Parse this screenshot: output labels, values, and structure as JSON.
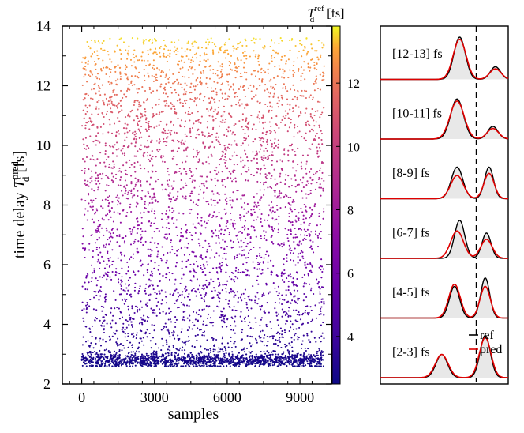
{
  "chart_data": [
    {
      "type": "scatter",
      "xlabel": "samples",
      "ylabel_main": "time delay ",
      "ylabel_symbol": "T",
      "ylabel_sub": "d",
      "ylabel_sup": "pred",
      "ylabel_unit": " [fs]",
      "xlim": [
        -800,
        10300
      ],
      "ylim": [
        2,
        14
      ],
      "xticks": [
        0,
        3000,
        6000,
        9000
      ],
      "xtick_labels": [
        "0",
        "3000",
        "6000",
        "9000"
      ],
      "yticks": [
        2,
        4,
        6,
        8,
        10,
        12,
        14
      ],
      "ytick_labels": [
        "2",
        "4",
        "6",
        "8",
        "10",
        "12",
        "14"
      ],
      "n_samples": 10000,
      "value_range": [
        2.6,
        13.6
      ],
      "dense_band_center": 2.8,
      "colormap": "plasma"
    },
    {
      "type": "colorbar",
      "label_symbol": "T",
      "label_sub": "d",
      "label_sup": "ref",
      "label_unit": " [fs]",
      "range": [
        2.5,
        13.8
      ],
      "ticks": [
        4,
        6,
        8,
        10,
        12
      ],
      "tick_labels": [
        "4",
        "6",
        "8",
        "10",
        "12"
      ],
      "colormap": "plasma"
    },
    {
      "type": "line",
      "panels": [
        {
          "label": "[12-13] fs",
          "ref_peaks": [
            [
              0.62,
              1.0,
              0.045
            ],
            [
              0.9,
              0.3,
              0.04
            ]
          ],
          "pred_peaks": [
            [
              0.62,
              0.95,
              0.05
            ],
            [
              0.9,
              0.25,
              0.045
            ]
          ]
        },
        {
          "label": "[10-11] fs",
          "ref_peaks": [
            [
              0.6,
              0.95,
              0.05
            ],
            [
              0.88,
              0.3,
              0.04
            ]
          ],
          "pred_peaks": [
            [
              0.6,
              0.9,
              0.055
            ],
            [
              0.88,
              0.25,
              0.045
            ]
          ]
        },
        {
          "label": "[8-9] fs",
          "ref_peaks": [
            [
              0.6,
              0.75,
              0.045
            ],
            [
              0.85,
              0.75,
              0.035
            ]
          ],
          "pred_peaks": [
            [
              0.6,
              0.55,
              0.05
            ],
            [
              0.85,
              0.6,
              0.04
            ]
          ]
        },
        {
          "label": "[6-7] fs",
          "ref_peaks": [
            [
              0.62,
              0.9,
              0.04
            ],
            [
              0.83,
              0.6,
              0.035
            ]
          ],
          "pred_peaks": [
            [
              0.6,
              0.65,
              0.05
            ],
            [
              0.83,
              0.45,
              0.045
            ]
          ]
        },
        {
          "label": "[4-5] fs",
          "ref_peaks": [
            [
              0.58,
              0.75,
              0.04
            ],
            [
              0.82,
              0.95,
              0.035
            ]
          ],
          "pred_peaks": [
            [
              0.58,
              0.8,
              0.045
            ],
            [
              0.82,
              0.75,
              0.04
            ]
          ]
        },
        {
          "label": "[2-3] fs",
          "ref_peaks": [
            [
              0.48,
              0.55,
              0.045
            ],
            [
              0.82,
              1.0,
              0.04
            ]
          ],
          "pred_peaks": [
            [
              0.48,
              0.55,
              0.05
            ],
            [
              0.82,
              0.95,
              0.045
            ]
          ]
        }
      ],
      "dashed_line_position": 0.75,
      "legend": {
        "ref": "ref",
        "pred": "pred",
        "placement": "bottom-right"
      },
      "colors": {
        "ref": "#000000",
        "pred": "#e00000",
        "fill": "#e8e8e8"
      }
    }
  ]
}
